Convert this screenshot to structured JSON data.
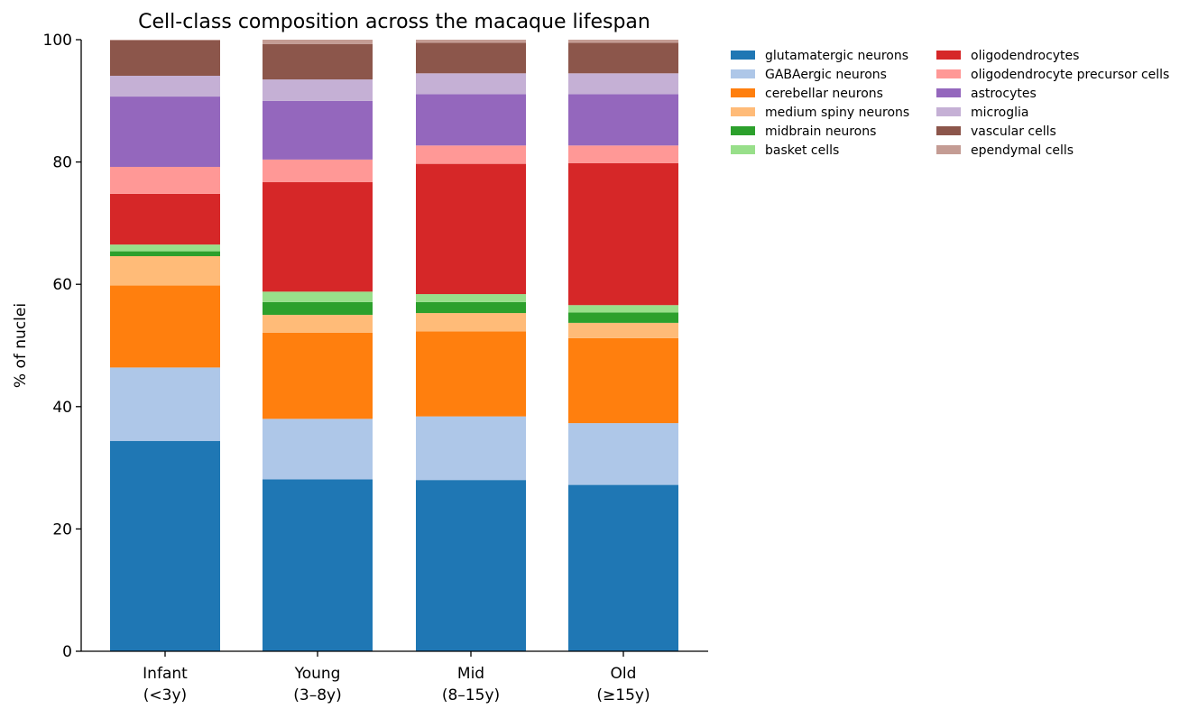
{
  "chart_data": {
    "type": "bar",
    "stacked": true,
    "title": "Cell-class composition across the macaque lifespan",
    "xlabel": "",
    "ylabel": "% of nuclei",
    "ylim": [
      0,
      100
    ],
    "yticks": [
      0,
      20,
      40,
      60,
      80,
      100
    ],
    "grid": false,
    "legend_position": "right, outside plot",
    "categories": [
      [
        "Infant",
        "(<3y)"
      ],
      [
        "Young",
        "(3–8y)"
      ],
      [
        "Mid",
        "(8–15y)"
      ],
      [
        "Old",
        "(≥15y)"
      ]
    ],
    "series": [
      {
        "name": "glutamatergic neurons",
        "color": "#1f77b4",
        "values": [
          34.4,
          28.1,
          28.0,
          27.2
        ]
      },
      {
        "name": "GABAergic neurons",
        "color": "#aec7e8",
        "values": [
          12.0,
          9.9,
          10.4,
          10.1
        ]
      },
      {
        "name": "cerebellar neurons",
        "color": "#ff7f0e",
        "values": [
          13.4,
          14.1,
          13.9,
          13.9
        ]
      },
      {
        "name": "medium spiny neurons",
        "color": "#ffbb78",
        "values": [
          4.8,
          2.9,
          3.0,
          2.5
        ]
      },
      {
        "name": "midbrain neurons",
        "color": "#2ca02c",
        "values": [
          0.8,
          2.1,
          1.8,
          1.7
        ]
      },
      {
        "name": "basket cells",
        "color": "#98df8a",
        "values": [
          1.1,
          1.7,
          1.3,
          1.2
        ]
      },
      {
        "name": "oligodendrocytes",
        "color": "#d62728",
        "values": [
          8.3,
          17.9,
          21.3,
          23.2
        ]
      },
      {
        "name": "oligodendrocyte precursor cells",
        "color": "#ff9896",
        "values": [
          4.4,
          3.7,
          3.0,
          2.9
        ]
      },
      {
        "name": "astrocytes",
        "color": "#9467bd",
        "values": [
          11.5,
          9.6,
          8.4,
          8.4
        ]
      },
      {
        "name": "microglia",
        "color": "#c5b0d5",
        "values": [
          3.4,
          3.5,
          3.4,
          3.4
        ]
      },
      {
        "name": "vascular cells",
        "color": "#8c564b",
        "values": [
          5.8,
          5.8,
          5.0,
          5.0
        ]
      },
      {
        "name": "ependymal cells",
        "color": "#c49c94",
        "values": [
          0.1,
          0.7,
          0.5,
          0.5
        ]
      }
    ]
  }
}
